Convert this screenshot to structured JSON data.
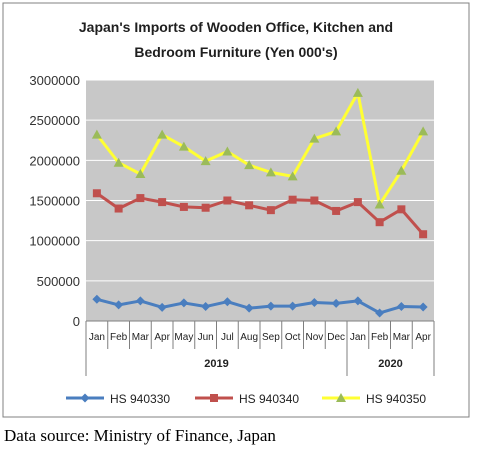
{
  "chart_data": {
    "type": "line",
    "title": "Japan's Imports of  Wooden  Office, Kitchen and Bedroom Furniture (Yen 000's)",
    "title_lines": [
      "Japan's Imports of  Wooden  Office, Kitchen and",
      "Bedroom Furniture (Yen 000's)"
    ],
    "categories": [
      "Jan",
      "Feb",
      "Mar",
      "Apr",
      "May",
      "Jun",
      "Jul",
      "Aug",
      "Sep",
      "Oct",
      "Nov",
      "Dec",
      "Jan",
      "Feb",
      "Mar",
      "Apr"
    ],
    "year_groups": [
      {
        "label": "2019",
        "start": 0,
        "end": 11
      },
      {
        "label": "2020",
        "start": 12,
        "end": 15
      }
    ],
    "series": [
      {
        "name": "HS 940330",
        "color": "#4a7ebf",
        "marker": "diamond",
        "values": [
          270000,
          200000,
          250000,
          170000,
          225000,
          180000,
          240000,
          160000,
          185000,
          185000,
          230000,
          220000,
          250000,
          100000,
          180000,
          175000
        ]
      },
      {
        "name": "HS 940340",
        "color": "#c0504d",
        "marker": "square",
        "values": [
          1590000,
          1400000,
          1530000,
          1480000,
          1420000,
          1410000,
          1500000,
          1440000,
          1380000,
          1510000,
          1500000,
          1370000,
          1480000,
          1230000,
          1390000,
          1080000
        ]
      },
      {
        "name": "HS 940350",
        "color": "#ffff33",
        "marker": "triangle",
        "marker_color": "#9bbb59",
        "values": [
          2320000,
          1970000,
          1830000,
          2320000,
          2170000,
          1990000,
          2110000,
          1940000,
          1850000,
          1800000,
          2270000,
          2360000,
          2840000,
          1450000,
          1870000,
          2360000
        ]
      }
    ],
    "ylim": [
      0,
      3000000
    ],
    "yticks": [
      0,
      500000,
      1000000,
      1500000,
      2000000,
      2500000,
      3000000
    ],
    "grid": true,
    "legend_position": "bottom",
    "plot_background": "#c8c8c8"
  },
  "source_text": "Data source: Ministry of Finance, Japan"
}
